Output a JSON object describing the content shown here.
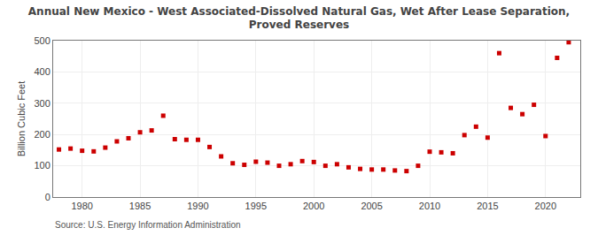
{
  "chart_data": {
    "type": "scatter",
    "title": "Annual New Mexico - West Associated-Dissolved Natural Gas, Wet After Lease Separation,\nProved Reserves",
    "ylabel": "Billion Cubic Feet",
    "annotations": [
      "Source: U.S. Energy Information Administration"
    ],
    "color": "#cc0000",
    "marker": "square",
    "grid": true,
    "xlim": [
      1977.5,
      2023
    ],
    "ylim": [
      0,
      500
    ],
    "xticks": [
      1980,
      1985,
      1990,
      1995,
      2000,
      2005,
      2010,
      2015,
      2020
    ],
    "yticks": [
      0,
      100,
      200,
      300,
      400,
      500
    ],
    "x": [
      1978,
      1979,
      1980,
      1981,
      1982,
      1983,
      1984,
      1985,
      1986,
      1987,
      1988,
      1989,
      1990,
      1991,
      1992,
      1993,
      1994,
      1995,
      1996,
      1997,
      1998,
      1999,
      2000,
      2001,
      2002,
      2003,
      2004,
      2005,
      2006,
      2007,
      2008,
      2009,
      2010,
      2011,
      2012,
      2013,
      2014,
      2015,
      2016,
      2017,
      2018,
      2019,
      2020,
      2021,
      2022
    ],
    "values": [
      152,
      155,
      148,
      146,
      158,
      178,
      188,
      207,
      213,
      260,
      185,
      183,
      183,
      160,
      130,
      108,
      103,
      113,
      110,
      100,
      105,
      115,
      112,
      100,
      105,
      95,
      90,
      88,
      88,
      85,
      83,
      100,
      145,
      143,
      140,
      198,
      225,
      190,
      460,
      285,
      265,
      295,
      195,
      445,
      495
    ]
  }
}
